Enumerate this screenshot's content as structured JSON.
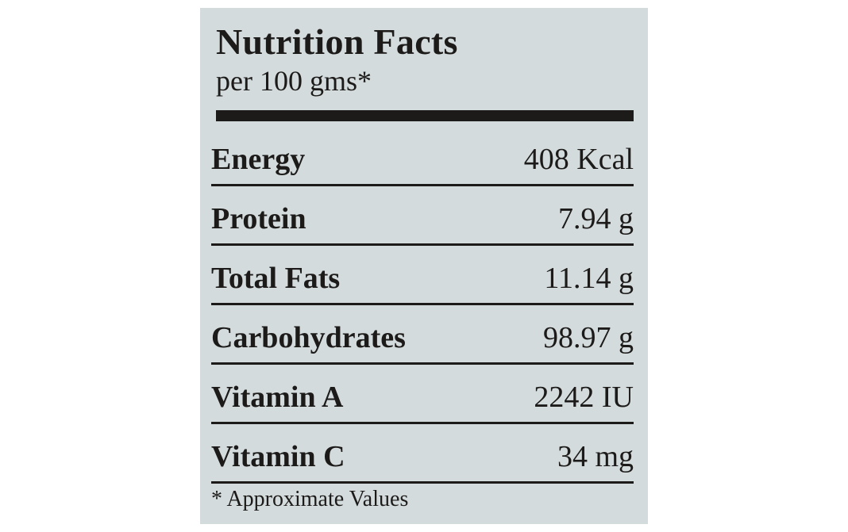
{
  "label": {
    "title": "Nutrition Facts",
    "subtitle": "per 100 gms*",
    "rows": [
      {
        "name": "Energy",
        "value": "408 Kcal"
      },
      {
        "name": "Protein",
        "value": "7.94 g"
      },
      {
        "name": "Total Fats",
        "value": "11.14 g"
      },
      {
        "name": "Carbohydrates",
        "value": "98.97 g"
      },
      {
        "name": "Vitamin A",
        "value": "2242 IU"
      },
      {
        "name": "Vitamin C",
        "value": "34 mg"
      }
    ],
    "footnote": "* Approximate Values"
  },
  "colors": {
    "panel_background": "#d4dbdc",
    "ink": "#1c1b1a",
    "page_background": "#ffffff"
  }
}
